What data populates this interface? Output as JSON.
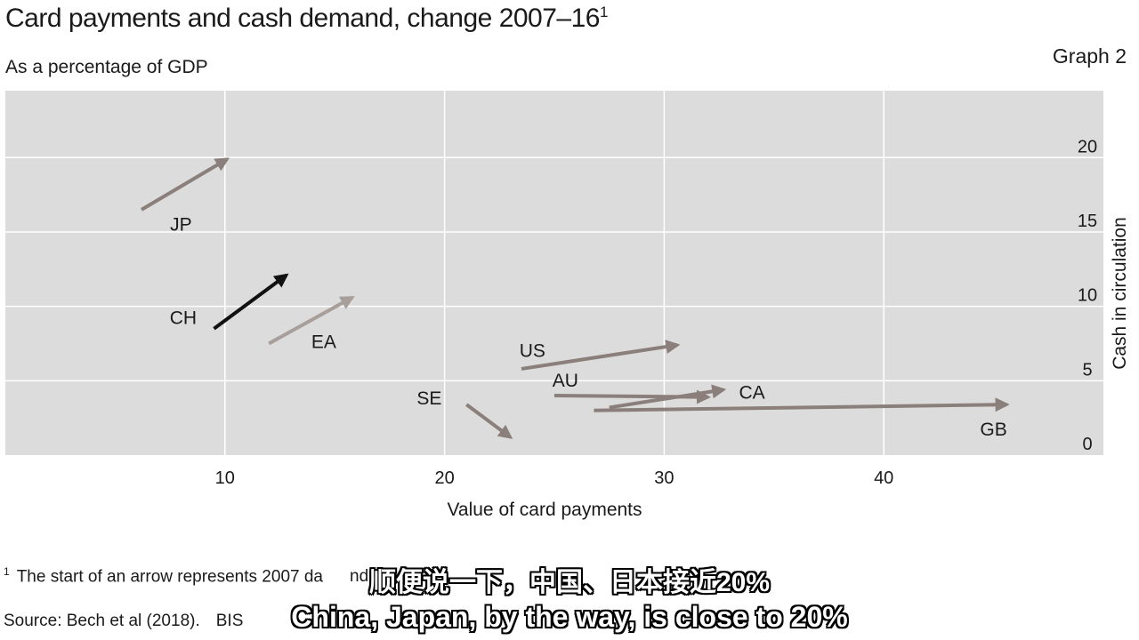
{
  "header": {
    "title": "Card payments and cash demand, change 2007–16",
    "title_footnote_mark": "1",
    "subtitle": "As a percentage of GDP",
    "graph_label": "Graph 2"
  },
  "footer": {
    "footnote_mark": "1",
    "footnote_text": "The start of an arrow represents 2007 da",
    "footnote_tail": "nd repres",
    "source": "Source: Bech et al (2018).",
    "source_tail": "BIS"
  },
  "captions": {
    "chinese": "顺便说一下，中国、日本接近20%",
    "english": "China, Japan, by the way, is close to 20%"
  },
  "colors": {
    "plot_background": "#dcdcdc",
    "gridline": "#ffffff",
    "arrow_default": "#8a7f7a",
    "arrow_ch": "#111111",
    "arrow_ea": "#a89f9b"
  },
  "chart_data": {
    "type": "arrow-scatter",
    "xlabel": "Value of card payments",
    "ylabel": "Cash in circulation",
    "xlim": [
      0,
      50
    ],
    "ylim": [
      0,
      24.5
    ],
    "xticks": [
      10,
      20,
      30,
      40
    ],
    "yticks": [
      0,
      5,
      10,
      15,
      20
    ],
    "grid": true,
    "y_axis_side": "right",
    "arrows": [
      {
        "label": "JP",
        "start": [
          6.2,
          16.5
        ],
        "end": [
          10.1,
          19.9
        ],
        "color": "#8a7f7a"
      },
      {
        "label": "CH",
        "start": [
          9.5,
          8.5
        ],
        "end": [
          12.8,
          12.1
        ],
        "color": "#111111"
      },
      {
        "label": "EA",
        "start": [
          12.0,
          7.5
        ],
        "end": [
          15.8,
          10.6
        ],
        "color": "#a89f9b"
      },
      {
        "label": "US",
        "start": [
          23.5,
          5.8
        ],
        "end": [
          30.6,
          7.4
        ],
        "color": "#8a7f7a"
      },
      {
        "label": "AU",
        "start": [
          25.0,
          4.0
        ],
        "end": [
          32.0,
          3.9
        ],
        "color": "#8a7f7a"
      },
      {
        "label": "CA",
        "start": [
          27.5,
          3.2
        ],
        "end": [
          32.7,
          4.4
        ],
        "color": "#8a7f7a"
      },
      {
        "label": "SE",
        "start": [
          21.0,
          3.4
        ],
        "end": [
          23.0,
          1.2
        ],
        "color": "#8a7f7a"
      },
      {
        "label": "GB",
        "start": [
          26.8,
          3.0
        ],
        "end": [
          45.6,
          3.4
        ],
        "color": "#8a7f7a"
      }
    ],
    "point_labels": [
      {
        "text": "JP",
        "x": 8.0,
        "y": 15.1
      },
      {
        "text": "CH",
        "x": 8.1,
        "y": 8.8
      },
      {
        "text": "EA",
        "x": 14.5,
        "y": 7.2
      },
      {
        "text": "US",
        "x": 24.0,
        "y": 6.6
      },
      {
        "text": "AU",
        "x": 25.5,
        "y": 4.6
      },
      {
        "text": "CA",
        "x": 34.0,
        "y": 3.8
      },
      {
        "text": "SE",
        "x": 19.3,
        "y": 3.4
      },
      {
        "text": "GB",
        "x": 45.0,
        "y": 1.3
      }
    ]
  }
}
